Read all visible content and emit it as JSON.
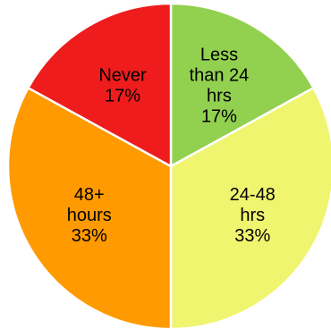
{
  "chart_data": {
    "type": "pie",
    "title": "",
    "start_angle_deg": 0,
    "direction": "clockwise",
    "slices": [
      {
        "label_lines": [
          "Less",
          "than 24",
          "hrs"
        ],
        "percent_label": "17%",
        "value": 17,
        "color": "#92d050"
      },
      {
        "label_lines": [
          "24-48",
          "hrs"
        ],
        "percent_label": "33%",
        "value": 33,
        "color": "#f0f56f"
      },
      {
        "label_lines": [
          "48+",
          "hours"
        ],
        "percent_label": "33%",
        "value": 33,
        "color": "#ff9a00"
      },
      {
        "label_lines": [
          "Never"
        ],
        "percent_label": "17%",
        "value": 17,
        "color": "#ee1c1c"
      }
    ]
  }
}
